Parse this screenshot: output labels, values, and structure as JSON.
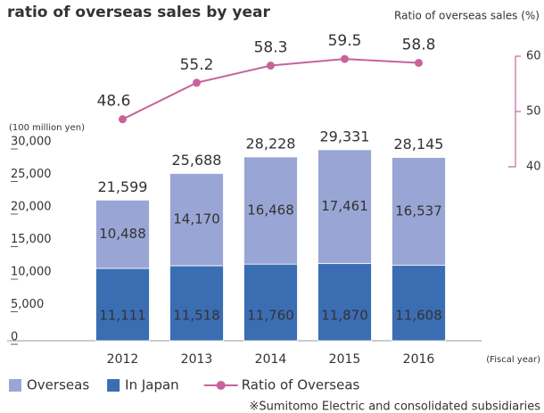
{
  "chart_data": {
    "type": "bar",
    "title": "ratio of overseas sales by year",
    "y_axis_label": "(100 million yen)",
    "y2_axis_label": "Ratio of overseas sales (%)",
    "x_axis_label": "(Fiscal year)",
    "note": "※Sumitomo Electric and consolidated subsidiaries",
    "categories": [
      "2012",
      "2013",
      "2014",
      "2015",
      "2016"
    ],
    "series": [
      {
        "name": "In Japan",
        "color": "#3b6db3",
        "values": [
          11111,
          11518,
          11760,
          11870,
          11608
        ],
        "value_labels": [
          "11,111",
          "11,518",
          "11,760",
          "11,870",
          "11,608"
        ]
      },
      {
        "name": "Overseas",
        "color": "#99a6d5",
        "values": [
          10488,
          14170,
          16468,
          17461,
          16537
        ],
        "value_labels": [
          "10,488",
          "14,170",
          "16,468",
          "17,461",
          "16,537"
        ]
      },
      {
        "name": "Ratio of Overseas",
        "type": "line",
        "axis": "y2",
        "color": "#c9639a",
        "values": [
          48.6,
          55.2,
          58.3,
          59.5,
          58.8
        ]
      }
    ],
    "totals": [
      "21,599",
      "25,688",
      "28,228",
      "29,331",
      "28,145"
    ],
    "ylim": [
      0,
      30000
    ],
    "yticks": [
      0,
      {
        "value": 5000,
        "label": "5,000"
      },
      {
        "value": 10000,
        "label": "10,000"
      },
      {
        "value": 15000,
        "label": "15,000"
      },
      {
        "value": 20000,
        "label": "20,000"
      },
      {
        "value": 25000,
        "label": "25,000"
      },
      {
        "value": 30000,
        "label": "30,000"
      }
    ],
    "y2lim": [
      40,
      60
    ],
    "y2ticks": [
      40,
      50,
      60
    ]
  }
}
